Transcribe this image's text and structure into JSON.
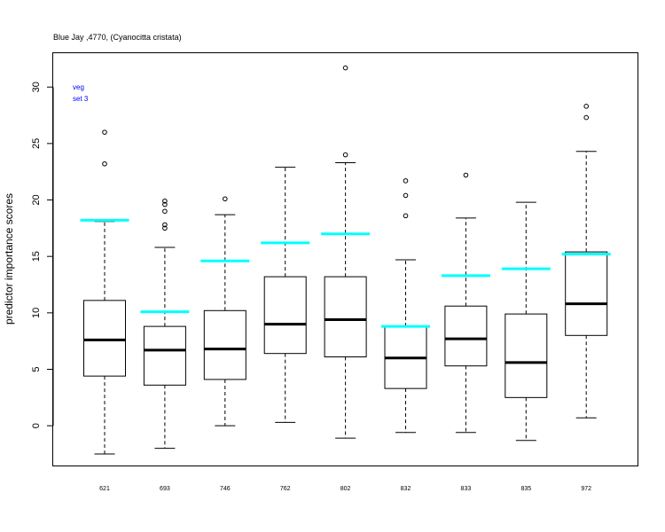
{
  "chart_data": {
    "type": "box",
    "title": "Blue Jay ,4770, (Cyanocitta cristata)",
    "xlabel": "",
    "ylabel": "predictor importance scores",
    "ylim": [
      -3.6,
      33
    ],
    "yticks": [
      0,
      5,
      10,
      15,
      20,
      25,
      30
    ],
    "grid": false,
    "legend_lines": [
      "veg",
      "set 3"
    ],
    "legend_color": "#0000ff",
    "reference_color": "#00ffff",
    "categories": [
      "621",
      "693",
      "746",
      "762",
      "802",
      "832",
      "833",
      "835",
      "972"
    ],
    "boxes": [
      {
        "label": "621",
        "min": -2.5,
        "q1": 4.4,
        "median": 7.6,
        "q3": 11.1,
        "max": 18.1,
        "outliers": [
          23.2,
          26.0
        ],
        "reference": 18.2
      },
      {
        "label": "693",
        "min": -2.0,
        "q1": 3.6,
        "median": 6.7,
        "q3": 8.8,
        "max": 15.8,
        "outliers": [
          17.5,
          17.8,
          19.0,
          19.6,
          19.9
        ],
        "reference": 10.1
      },
      {
        "label": "746",
        "min": 0.0,
        "q1": 4.1,
        "median": 6.8,
        "q3": 10.2,
        "max": 18.7,
        "outliers": [
          20.1
        ],
        "reference": 14.6
      },
      {
        "label": "762",
        "min": 0.3,
        "q1": 6.4,
        "median": 9.0,
        "q3": 13.2,
        "max": 22.9,
        "outliers": [],
        "reference": 16.2
      },
      {
        "label": "802",
        "min": -1.1,
        "q1": 6.1,
        "median": 9.4,
        "q3": 13.2,
        "max": 23.3,
        "outliers": [
          24.0,
          31.7
        ],
        "reference": 17.0
      },
      {
        "label": "832",
        "min": -0.6,
        "q1": 3.3,
        "median": 6.0,
        "q3": 8.8,
        "max": 14.7,
        "outliers": [
          18.6,
          20.4,
          21.7
        ],
        "reference": 8.8
      },
      {
        "label": "833",
        "min": -0.6,
        "q1": 5.3,
        "median": 7.7,
        "q3": 10.6,
        "max": 18.4,
        "outliers": [
          22.2
        ],
        "reference": 13.3
      },
      {
        "label": "835",
        "min": -1.3,
        "q1": 2.5,
        "median": 5.6,
        "q3": 9.9,
        "max": 19.8,
        "outliers": [],
        "reference": 13.9
      },
      {
        "label": "972",
        "min": 0.7,
        "q1": 8.0,
        "median": 10.8,
        "q3": 15.4,
        "max": 24.3,
        "outliers": [
          27.3,
          28.3
        ],
        "reference": 15.2
      }
    ]
  }
}
